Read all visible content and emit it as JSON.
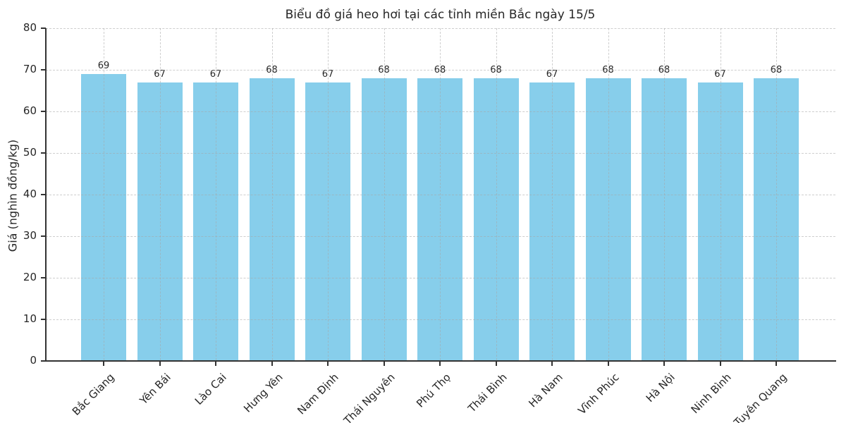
{
  "chart_data": {
    "type": "bar",
    "title": "Biểu đồ giá heo hơi tại các tỉnh miền Bắc ngày 15/5",
    "xlabel": "",
    "ylabel": "Giá (nghìn đồng/kg)",
    "categories": [
      "Bắc Giang",
      "Yên Bái",
      "Lào Cai",
      "Hưng Yên",
      "Nam Định",
      "Thái Nguyên",
      "Phú Thọ",
      "Thái Bình",
      "Hà Nam",
      "Vĩnh Phúc",
      "Hà Nội",
      "Ninh Bình",
      "Tuyên Quang"
    ],
    "values": [
      69,
      67,
      67,
      68,
      67,
      68,
      68,
      68,
      67,
      68,
      68,
      67,
      68
    ],
    "value_labels_shown": true,
    "ylim": [
      0,
      80
    ],
    "yticks": [
      0,
      10,
      20,
      30,
      40,
      50,
      60,
      70,
      80
    ],
    "grid": "both, dashed",
    "legend": "none",
    "colors": {
      "bar": "#87CEEB",
      "axis": "#333333",
      "grid": "#a5a5a5",
      "text": "#262626",
      "background": "#ffffff"
    }
  }
}
